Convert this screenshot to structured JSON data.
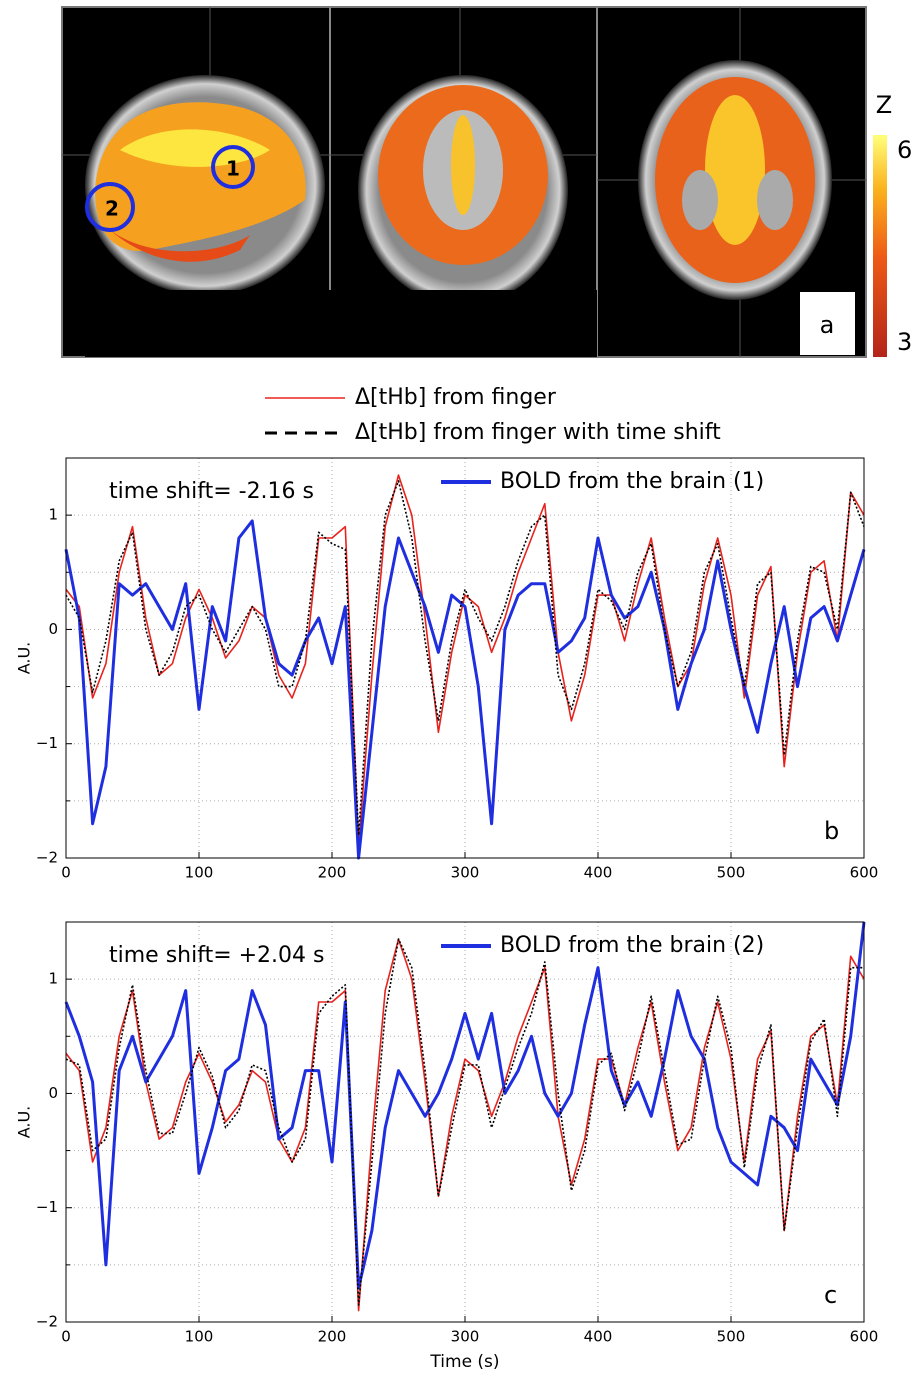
{
  "figure": {
    "panel_label": "a",
    "markers": [
      "1",
      "2"
    ],
    "colorbar": {
      "title": "Z",
      "max": 6,
      "min": 3
    }
  },
  "chart_data": [
    {
      "type": "line",
      "annotation": "time shift= -2.16 s",
      "panel_label": "b",
      "ylabel": "A.U.",
      "x": [
        0,
        10,
        20,
        30,
        40,
        50,
        60,
        70,
        80,
        90,
        100,
        110,
        120,
        130,
        140,
        150,
        160,
        170,
        180,
        190,
        200,
        210,
        220,
        230,
        240,
        250,
        260,
        270,
        280,
        290,
        300,
        310,
        320,
        330,
        340,
        350,
        360,
        370,
        380,
        390,
        400,
        410,
        420,
        430,
        440,
        450,
        460,
        470,
        480,
        490,
        500,
        510,
        520,
        530,
        540,
        550,
        560,
        570,
        580,
        590,
        600
      ],
      "xlim": [
        0,
        600
      ],
      "xticks": [
        0,
        100,
        200,
        300,
        400,
        500,
        600
      ],
      "ylim": [
        -2,
        1.5
      ],
      "yticks": [
        {
          "value": -2,
          "label": "−2"
        },
        {
          "value": -1,
          "label": "−1"
        },
        0,
        1
      ],
      "minor_yticks": [
        -1.5,
        -0.5,
        0.5
      ],
      "grid": true,
      "series": [
        {
          "name": "Δ[tHb] from finger",
          "color": "#e8231e",
          "dash": false,
          "values": [
            0.35,
            0.2,
            -0.6,
            -0.3,
            0.5,
            0.9,
            0.1,
            -0.4,
            -0.3,
            0.1,
            0.35,
            0.1,
            -0.25,
            -0.1,
            0.2,
            0.1,
            -0.4,
            -0.6,
            -0.3,
            0.8,
            0.8,
            0.9,
            -1.9,
            -0.4,
            0.9,
            1.35,
            1.0,
            0.1,
            -0.9,
            -0.2,
            0.3,
            0.2,
            -0.2,
            0.1,
            0.5,
            0.8,
            1.1,
            -0.2,
            -0.8,
            -0.4,
            0.3,
            0.3,
            -0.1,
            0.4,
            0.8,
            0.1,
            -0.5,
            -0.3,
            0.4,
            0.8,
            0.3,
            -0.6,
            0.3,
            0.55,
            -1.2,
            -0.2,
            0.5,
            0.6,
            -0.1,
            1.2,
            1.0
          ]
        },
        {
          "name": "Δ[tHb] from finger with time shift",
          "color": "#000000",
          "dash": true,
          "values": [
            0.3,
            0.1,
            -0.55,
            -0.1,
            0.6,
            0.85,
            0.0,
            -0.4,
            -0.2,
            0.2,
            0.3,
            0.0,
            -0.2,
            0.0,
            0.2,
            0.0,
            -0.5,
            -0.5,
            -0.1,
            0.85,
            0.75,
            0.7,
            -1.8,
            -0.1,
            1.0,
            1.3,
            0.8,
            -0.1,
            -0.8,
            -0.1,
            0.35,
            0.1,
            -0.1,
            0.2,
            0.6,
            0.9,
            1.0,
            -0.4,
            -0.7,
            -0.3,
            0.35,
            0.25,
            0.0,
            0.5,
            0.75,
            0.0,
            -0.5,
            -0.2,
            0.5,
            0.75,
            0.1,
            -0.5,
            0.4,
            0.5,
            -1.1,
            -0.1,
            0.55,
            0.5,
            0.0,
            1.2,
            0.9
          ]
        },
        {
          "name": "BOLD from the brain (1)",
          "color": "#1f2fe0",
          "dash": false,
          "width": 3,
          "values": [
            0.7,
            0.1,
            -1.7,
            -1.2,
            0.4,
            0.3,
            0.4,
            0.2,
            0.0,
            0.4,
            -0.7,
            0.2,
            -0.1,
            0.8,
            0.95,
            0.1,
            -0.3,
            -0.4,
            -0.1,
            0.1,
            -0.3,
            0.2,
            -2.0,
            -0.9,
            0.2,
            0.8,
            0.5,
            0.2,
            -0.2,
            0.3,
            0.2,
            -0.5,
            -1.7,
            0.0,
            0.3,
            0.4,
            0.4,
            -0.2,
            -0.1,
            0.1,
            0.8,
            0.3,
            0.1,
            0.2,
            0.5,
            0.0,
            -0.7,
            -0.3,
            0.0,
            0.6,
            0.0,
            -0.5,
            -0.9,
            -0.3,
            0.2,
            -0.5,
            0.1,
            0.2,
            -0.1,
            0.3,
            0.7
          ]
        }
      ]
    },
    {
      "type": "line",
      "annotation": "time shift= +2.04 s",
      "panel_label": "c",
      "ylabel": "A.U.",
      "xlabel": "Time (s)",
      "x": [
        0,
        10,
        20,
        30,
        40,
        50,
        60,
        70,
        80,
        90,
        100,
        110,
        120,
        130,
        140,
        150,
        160,
        170,
        180,
        190,
        200,
        210,
        220,
        230,
        240,
        250,
        260,
        270,
        280,
        290,
        300,
        310,
        320,
        330,
        340,
        350,
        360,
        370,
        380,
        390,
        400,
        410,
        420,
        430,
        440,
        450,
        460,
        470,
        480,
        490,
        500,
        510,
        520,
        530,
        540,
        550,
        560,
        570,
        580,
        590,
        600
      ],
      "xlim": [
        0,
        600
      ],
      "xticks": [
        0,
        100,
        200,
        300,
        400,
        500,
        600
      ],
      "ylim": [
        -2,
        1.5
      ],
      "yticks": [
        {
          "value": -2,
          "label": "−2"
        },
        {
          "value": -1,
          "label": "−1"
        },
        0,
        1
      ],
      "minor_yticks": [
        -1.5,
        -0.5,
        0.5
      ],
      "grid": true,
      "series": [
        {
          "color": "#e8231e",
          "dash": false,
          "values": [
            0.35,
            0.2,
            -0.6,
            -0.3,
            0.5,
            0.9,
            0.1,
            -0.4,
            -0.3,
            0.1,
            0.35,
            0.1,
            -0.25,
            -0.1,
            0.2,
            0.1,
            -0.4,
            -0.6,
            -0.3,
            0.8,
            0.8,
            0.9,
            -1.9,
            -0.4,
            0.9,
            1.35,
            1.0,
            0.1,
            -0.9,
            -0.2,
            0.3,
            0.2,
            -0.2,
            0.1,
            0.5,
            0.8,
            1.1,
            -0.2,
            -0.8,
            -0.4,
            0.3,
            0.3,
            -0.1,
            0.4,
            0.8,
            0.1,
            -0.5,
            -0.3,
            0.4,
            0.8,
            0.3,
            -0.6,
            0.3,
            0.55,
            -1.2,
            -0.2,
            0.5,
            0.6,
            -0.1,
            1.2,
            1.0
          ]
        },
        {
          "color": "#000000",
          "dash": true,
          "values": [
            0.3,
            0.25,
            -0.5,
            -0.4,
            0.4,
            0.95,
            0.2,
            -0.35,
            -0.35,
            0.0,
            0.4,
            0.15,
            -0.3,
            -0.15,
            0.25,
            0.2,
            -0.3,
            -0.6,
            -0.4,
            0.7,
            0.85,
            0.95,
            -1.85,
            -0.6,
            0.7,
            1.35,
            1.1,
            0.2,
            -0.9,
            -0.3,
            0.25,
            0.25,
            -0.3,
            0.05,
            0.4,
            0.7,
            1.15,
            0.0,
            -0.85,
            -0.5,
            0.25,
            0.35,
            -0.15,
            0.3,
            0.85,
            0.2,
            -0.45,
            -0.4,
            0.3,
            0.85,
            0.4,
            -0.65,
            0.2,
            0.6,
            -1.2,
            -0.3,
            0.45,
            0.65,
            -0.2,
            1.1,
            1.1
          ]
        },
        {
          "name": "BOLD from the brain (2)",
          "color": "#1f2fe0",
          "dash": false,
          "width": 3,
          "values": [
            0.8,
            0.5,
            0.1,
            -1.5,
            0.2,
            0.5,
            0.1,
            0.3,
            0.5,
            0.9,
            -0.7,
            -0.3,
            0.2,
            0.3,
            0.9,
            0.6,
            -0.4,
            -0.3,
            0.2,
            0.2,
            -0.6,
            0.8,
            -1.7,
            -1.2,
            -0.3,
            0.2,
            0.0,
            -0.2,
            0.0,
            0.3,
            0.7,
            0.3,
            0.7,
            0.0,
            0.2,
            0.5,
            0.0,
            -0.2,
            0.0,
            0.6,
            1.1,
            0.2,
            -0.1,
            0.1,
            -0.2,
            0.3,
            0.9,
            0.5,
            0.3,
            -0.3,
            -0.6,
            -0.7,
            -0.8,
            -0.2,
            -0.3,
            -0.5,
            0.3,
            0.1,
            -0.1,
            0.5,
            1.5
          ]
        }
      ]
    }
  ]
}
